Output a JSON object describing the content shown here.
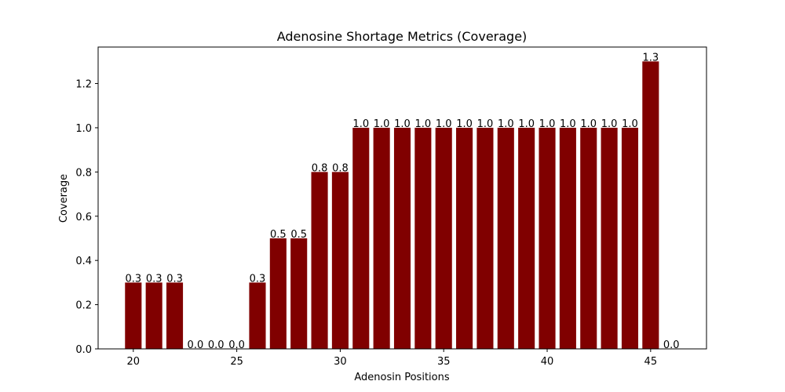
{
  "chart_data": {
    "type": "bar",
    "title": "Adenosine Shortage Metrics (Coverage)",
    "xlabel": "Adenosin Positions",
    "ylabel": "Coverage",
    "x": [
      20,
      21,
      22,
      23,
      24,
      25,
      26,
      27,
      28,
      29,
      30,
      31,
      32,
      33,
      34,
      35,
      36,
      37,
      38,
      39,
      40,
      41,
      42,
      43,
      44,
      45,
      46
    ],
    "values": [
      0.3,
      0.3,
      0.3,
      0.0,
      0.0,
      0.0,
      0.3,
      0.5,
      0.5,
      0.8,
      0.8,
      1.0,
      1.0,
      1.0,
      1.0,
      1.0,
      1.0,
      1.0,
      1.0,
      1.0,
      1.0,
      1.0,
      1.0,
      1.0,
      1.0,
      1.3,
      0.0
    ],
    "data_labels": [
      "0.3",
      "0.3",
      "0.3",
      "0.0",
      "0.0",
      "0.0",
      "0.3",
      "0.5",
      "0.5",
      "0.8",
      "0.8",
      "1.0",
      "1.0",
      "1.0",
      "1.0",
      "1.0",
      "1.0",
      "1.0",
      "1.0",
      "1.0",
      "1.0",
      "1.0",
      "1.0",
      "1.0",
      "1.0",
      "1.3",
      "0.0"
    ],
    "xticks": [
      20,
      25,
      30,
      35,
      40,
      45
    ],
    "xtick_labels": [
      "20",
      "25",
      "30",
      "35",
      "40",
      "45"
    ],
    "yticks": [
      0.0,
      0.2,
      0.4,
      0.6,
      0.8,
      1.0,
      1.2
    ],
    "ytick_labels": [
      "0.0",
      "0.2",
      "0.4",
      "0.6",
      "0.8",
      "1.0",
      "1.2"
    ],
    "xlim": [
      18.3,
      47.7
    ],
    "ylim": [
      0,
      1.365
    ],
    "grid": false,
    "bar_color": "#800000"
  }
}
